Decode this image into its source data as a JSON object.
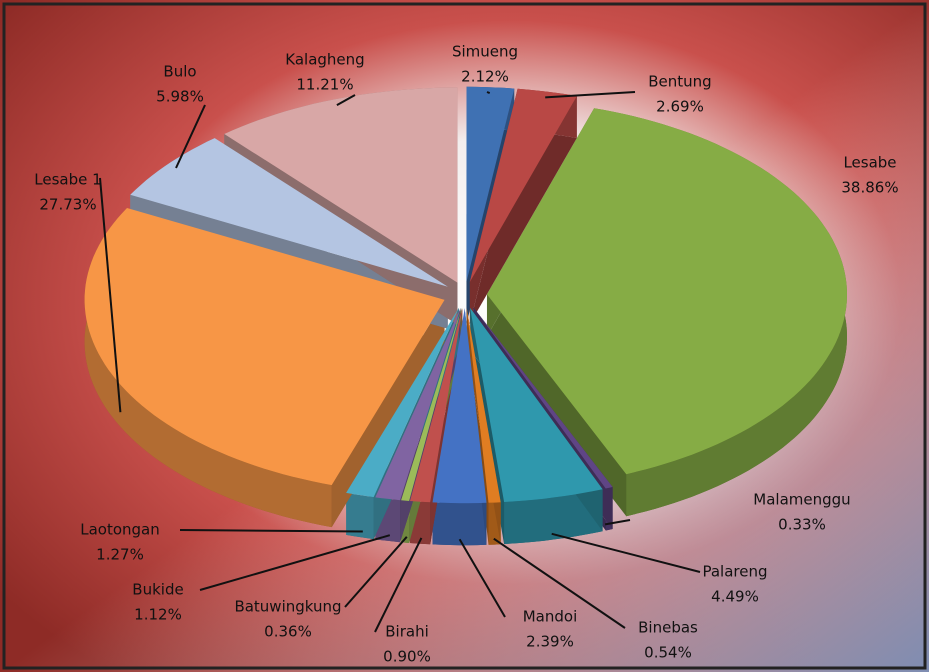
{
  "chart_data": {
    "type": "pie",
    "categories": [
      "Simueng",
      "Bentung",
      "Lesabe",
      "Malamenggu",
      "Palareng",
      "Binebas",
      "Mandoi",
      "Birahi",
      "Batuwingkung",
      "Bukide",
      "Laotongan",
      "Lesabe 1",
      "Bulo",
      "Kalagheng"
    ],
    "values": [
      2.12,
      2.69,
      38.86,
      0.33,
      4.49,
      0.54,
      2.39,
      0.9,
      0.36,
      1.12,
      1.27,
      27.73,
      5.98,
      11.21
    ],
    "value_labels": [
      "2.12%",
      "2.69%",
      "38.86%",
      "0.33%",
      "4.49%",
      "0.54%",
      "2.39%",
      "0.90%",
      "0.36%",
      "1.12%",
      "1.27%",
      "27.73%",
      "5.98%",
      "11.21%"
    ],
    "colors": [
      "#3f71b3",
      "#b94845",
      "#86ac45",
      "#5f4585",
      "#2f98ad",
      "#e07d22",
      "#4472c4",
      "#c0504d",
      "#9bbb59",
      "#8064a2",
      "#4bacc6",
      "#f79646",
      "#b4c5e2",
      "#d8a7a6"
    ]
  }
}
